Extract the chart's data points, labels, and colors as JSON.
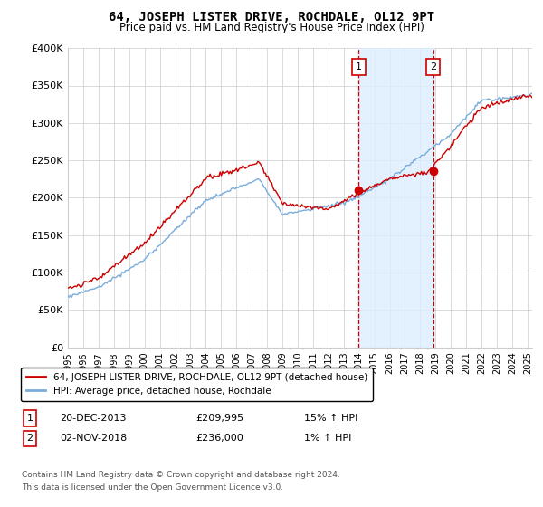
{
  "title": "64, JOSEPH LISTER DRIVE, ROCHDALE, OL12 9PT",
  "subtitle": "Price paid vs. HM Land Registry's House Price Index (HPI)",
  "hpi_label": "HPI: Average price, detached house, Rochdale",
  "property_label": "64, JOSEPH LISTER DRIVE, ROCHDALE, OL12 9PT (detached house)",
  "annotation1": {
    "label": "1",
    "date": "20-DEC-2013",
    "price": 209995,
    "pct": "15% ↑ HPI",
    "x_year": 2013.97
  },
  "annotation2": {
    "label": "2",
    "date": "02-NOV-2018",
    "price": 236000,
    "pct": "1% ↑ HPI",
    "x_year": 2018.84
  },
  "footnote1": "Contains HM Land Registry data © Crown copyright and database right 2024.",
  "footnote2": "This data is licensed under the Open Government Licence v3.0.",
  "ylim": [
    0,
    400000
  ],
  "yticks": [
    0,
    50000,
    100000,
    150000,
    200000,
    250000,
    300000,
    350000,
    400000
  ],
  "ytick_labels": [
    "£0",
    "£50K",
    "£100K",
    "£150K",
    "£200K",
    "£250K",
    "£300K",
    "£350K",
    "£400K"
  ],
  "property_color": "#cc0000",
  "hpi_color": "#7aaddb",
  "shaded_color": "#ddeeff",
  "annotation_border_color": "#cc0000",
  "background_color": "#ffffff",
  "grid_color": "#cccccc",
  "xlim_start": 1995,
  "xlim_end": 2025.3
}
